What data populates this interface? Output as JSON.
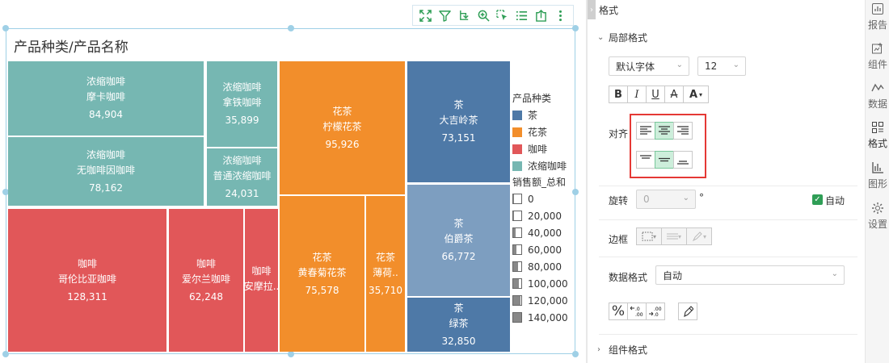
{
  "toolbar": {
    "icons": [
      "fullscreen-icon",
      "filter-icon",
      "drill-icon",
      "zoom-icon",
      "select-icon",
      "list-icon",
      "export-icon",
      "more-icon"
    ]
  },
  "chart_data": {
    "type": "treemap",
    "title": "产品种类/产品名称",
    "size_measure": "销售额_总和",
    "color_dimension": "产品种类",
    "colors": {
      "茶": "#4e79a7",
      "花茶": "#f28e2b",
      "咖啡": "#e15759",
      "浓缩咖啡": "#76b7b2"
    },
    "nodes": [
      {
        "category": "浓缩咖啡",
        "name": "摩卡咖啡",
        "value": 84904,
        "value_label": "84,904"
      },
      {
        "category": "浓缩咖啡",
        "name": "拿铁咖啡",
        "value": 35899,
        "value_label": "35,899"
      },
      {
        "category": "浓缩咖啡",
        "name": "无咖啡因咖啡",
        "value": 78162,
        "value_label": "78,162"
      },
      {
        "category": "浓缩咖啡",
        "name": "普通浓缩咖啡",
        "value": 24031,
        "value_label": "24,031"
      },
      {
        "category": "咖啡",
        "name": "哥伦比亚咖啡",
        "value": 128311,
        "value_label": "128,311"
      },
      {
        "category": "咖啡",
        "name": "爱尔兰咖啡",
        "value": 62248,
        "value_label": "62,248"
      },
      {
        "category": "咖啡",
        "name": "安摩拉..",
        "value": null,
        "value_label": ""
      },
      {
        "category": "花茶",
        "name": "柠檬花茶",
        "value": 95926,
        "value_label": "95,926"
      },
      {
        "category": "花茶",
        "name": "黄春菊花茶",
        "value": 75578,
        "value_label": "75,578"
      },
      {
        "category": "花茶",
        "name": "薄荷..",
        "value": 35710,
        "value_label": "35,710"
      },
      {
        "category": "茶",
        "name": "大吉岭茶",
        "value": 73151,
        "value_label": "73,151"
      },
      {
        "category": "茶",
        "name": "伯爵茶",
        "value": 66772,
        "value_label": "66,772"
      },
      {
        "category": "茶",
        "name": "绿茶",
        "value": 32850,
        "value_label": "32,850"
      }
    ],
    "legend": {
      "color_title": "产品种类",
      "color_items": [
        "茶",
        "花茶",
        "咖啡",
        "浓缩咖啡"
      ],
      "size_title": "销售额_总和",
      "size_items": [
        "0",
        "20,000",
        "40,000",
        "60,000",
        "80,000",
        "100,000",
        "120,000",
        "140,000"
      ],
      "size_values": [
        0,
        20000,
        40000,
        60000,
        80000,
        100000,
        120000,
        140000
      ]
    }
  },
  "panel": {
    "header_title": "格式",
    "local_format_title": "局部格式",
    "font_family": "默认字体",
    "font_size": "12",
    "style_buttons": {
      "bold": "B",
      "italic": "I",
      "underline": "U",
      "strike": "A",
      "color": "A"
    },
    "align_label": "对齐",
    "horizontal_align": "center",
    "vertical_align": "middle",
    "rotate_label": "旋转",
    "rotate_value": "0",
    "rotate_unit": "°",
    "auto_label": "自动",
    "border_label": "边框",
    "number_format_label": "数据格式",
    "number_format_value": "自动",
    "percent_label": "%",
    "component_format_title": "组件格式"
  },
  "sidebar": {
    "items": [
      {
        "label": "报告",
        "icon": "report-icon"
      },
      {
        "label": "组件",
        "icon": "component-icon"
      },
      {
        "label": "数据",
        "icon": "data-icon"
      },
      {
        "label": "格式",
        "icon": "format-icon"
      },
      {
        "label": "图形",
        "icon": "shape-icon"
      },
      {
        "label": "设置",
        "icon": "settings-icon"
      }
    ],
    "active": "格式"
  }
}
